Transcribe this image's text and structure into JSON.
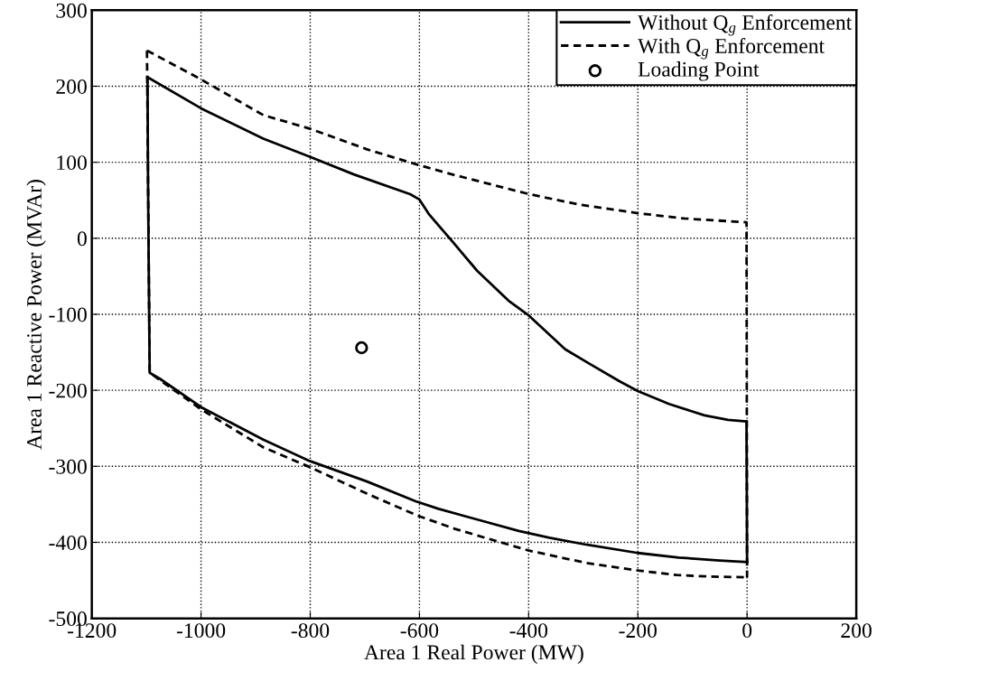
{
  "chart_data": {
    "type": "line",
    "xlabel": "Area 1 Real Power (MW)",
    "ylabel": "Area 1 Reactive Power (MVAr)",
    "xlim": [
      -1200,
      200
    ],
    "xticks": [
      -1200,
      -1000,
      -800,
      -600,
      -400,
      -200,
      0,
      200
    ],
    "ylim": [
      -500,
      300
    ],
    "yticks": [
      -500,
      -400,
      -300,
      -200,
      -100,
      0,
      100,
      200,
      300
    ],
    "grid": true,
    "legend": "top right",
    "series": [
      {
        "name": "Without Q$_{g}$ Enforcement",
        "color": "#000000",
        "line_style": "solid",
        "marker": "none",
        "x": [
          -1098,
          -1000,
          -886,
          -800,
          -720,
          -617,
          -600,
          -583,
          -540,
          -494,
          -437,
          -399,
          -333,
          -291,
          -234,
          -200,
          -143,
          -78,
          -35,
          -1,
          0
        ],
        "values": [
          212,
          171,
          131,
          107,
          84,
          58,
          51,
          32,
          -4,
          -43,
          -82,
          -102,
          -146,
          -164,
          -188,
          -201,
          -218,
          -233,
          -239,
          -241,
          -426
        ]
      },
      {
        "color": "#000000",
        "line_style": "solid",
        "marker": "none",
        "x": [
          -1098,
          -1097,
          -1095,
          -1094,
          -1075,
          -1000,
          -886,
          -801,
          -696,
          -607,
          -565,
          -494,
          -418,
          -362,
          -295,
          -200,
          -125,
          -50,
          0
        ],
        "values": [
          212,
          70,
          -100,
          -177,
          -185,
          -222,
          -265,
          -293,
          -320,
          -346,
          -356,
          -370,
          -385,
          -394,
          -403,
          -414,
          -420,
          -424,
          -426
        ]
      },
      {
        "name": "With Q$_{g}$ Enforcement",
        "color": "#000000",
        "line_style": "dashed",
        "marker": "none",
        "x": [
          -1099,
          -1000,
          -886,
          -800,
          -696,
          -600,
          -540,
          -399,
          -305,
          -200,
          -115,
          -1,
          0
        ],
        "values": [
          247,
          209,
          162,
          144,
          117,
          96,
          84,
          58,
          44,
          33,
          26,
          21,
          -446
        ]
      },
      {
        "color": "#000000",
        "line_style": "dashed",
        "marker": "none",
        "x": [
          -1099,
          -1094,
          -1000,
          -886,
          -801,
          -696,
          -603,
          -536,
          -494,
          -399,
          -295,
          -200,
          -129,
          -68,
          0
        ],
        "values": [
          247,
          -177,
          -225,
          -275,
          -301,
          -336,
          -365,
          -382,
          -391,
          -411,
          -427,
          -437,
          -443,
          -445,
          -446
        ]
      },
      {
        "name": "Loading Point",
        "type": "scatter",
        "color": "#000000",
        "marker": "circle",
        "x": [
          -706
        ],
        "values": [
          -144
        ]
      }
    ]
  }
}
